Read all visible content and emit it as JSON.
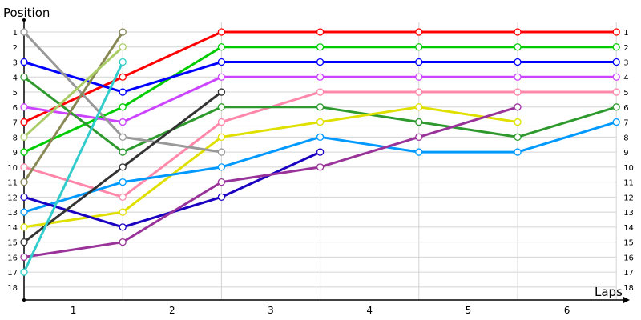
{
  "chart_data": {
    "type": "line",
    "ylabel": "Position",
    "xlabel": "Laps",
    "x_tick_labels": [
      "1",
      "2",
      "3",
      "4",
      "5",
      "6"
    ],
    "y_tick_labels": [
      "1",
      "2",
      "3",
      "4",
      "5",
      "6",
      "7",
      "8",
      "9",
      "10",
      "11",
      "12",
      "13",
      "14",
      "15",
      "16",
      "17",
      "18"
    ],
    "ylim": [
      1,
      18
    ],
    "y_inverted": true,
    "xlim": [
      0,
      6
    ],
    "grid": true,
    "series": [
      {
        "color": "#ff0000",
        "values": [
          7,
          4,
          1,
          1,
          1,
          1,
          1
        ]
      },
      {
        "color": "#00cc00",
        "values": [
          9,
          6,
          2,
          2,
          2,
          2,
          2
        ]
      },
      {
        "color": "#0000ff",
        "values": [
          3,
          5,
          3,
          3,
          3,
          3,
          3
        ]
      },
      {
        "color": "#cc44ff",
        "values": [
          6,
          7,
          4,
          4,
          4,
          4,
          4
        ]
      },
      {
        "color": "#ff88aa",
        "values": [
          10,
          12,
          7,
          5,
          5,
          5,
          5
        ]
      },
      {
        "color": "#2e9a2e",
        "values": [
          4,
          9,
          6,
          6,
          7,
          8,
          6
        ]
      },
      {
        "color": "#e0e000",
        "values": [
          14,
          13,
          8,
          7,
          6,
          7
        ]
      },
      {
        "color": "#0099ff",
        "values": [
          13,
          11,
          10,
          8,
          9,
          9,
          7
        ]
      },
      {
        "color": "#1a00c0",
        "values": [
          12,
          14,
          12,
          9
        ]
      },
      {
        "color": "#993399",
        "values": [
          16,
          15,
          11,
          10,
          8,
          6
        ]
      },
      {
        "color": "#999999",
        "values": [
          1,
          8,
          9
        ]
      },
      {
        "color": "#333333",
        "values": [
          15,
          10,
          5
        ]
      },
      {
        "color": "#888855",
        "values": [
          11,
          1
        ]
      },
      {
        "color": "#aacc66",
        "values": [
          8,
          2
        ]
      },
      {
        "color": "#33cccc",
        "values": [
          17,
          3
        ]
      }
    ]
  }
}
